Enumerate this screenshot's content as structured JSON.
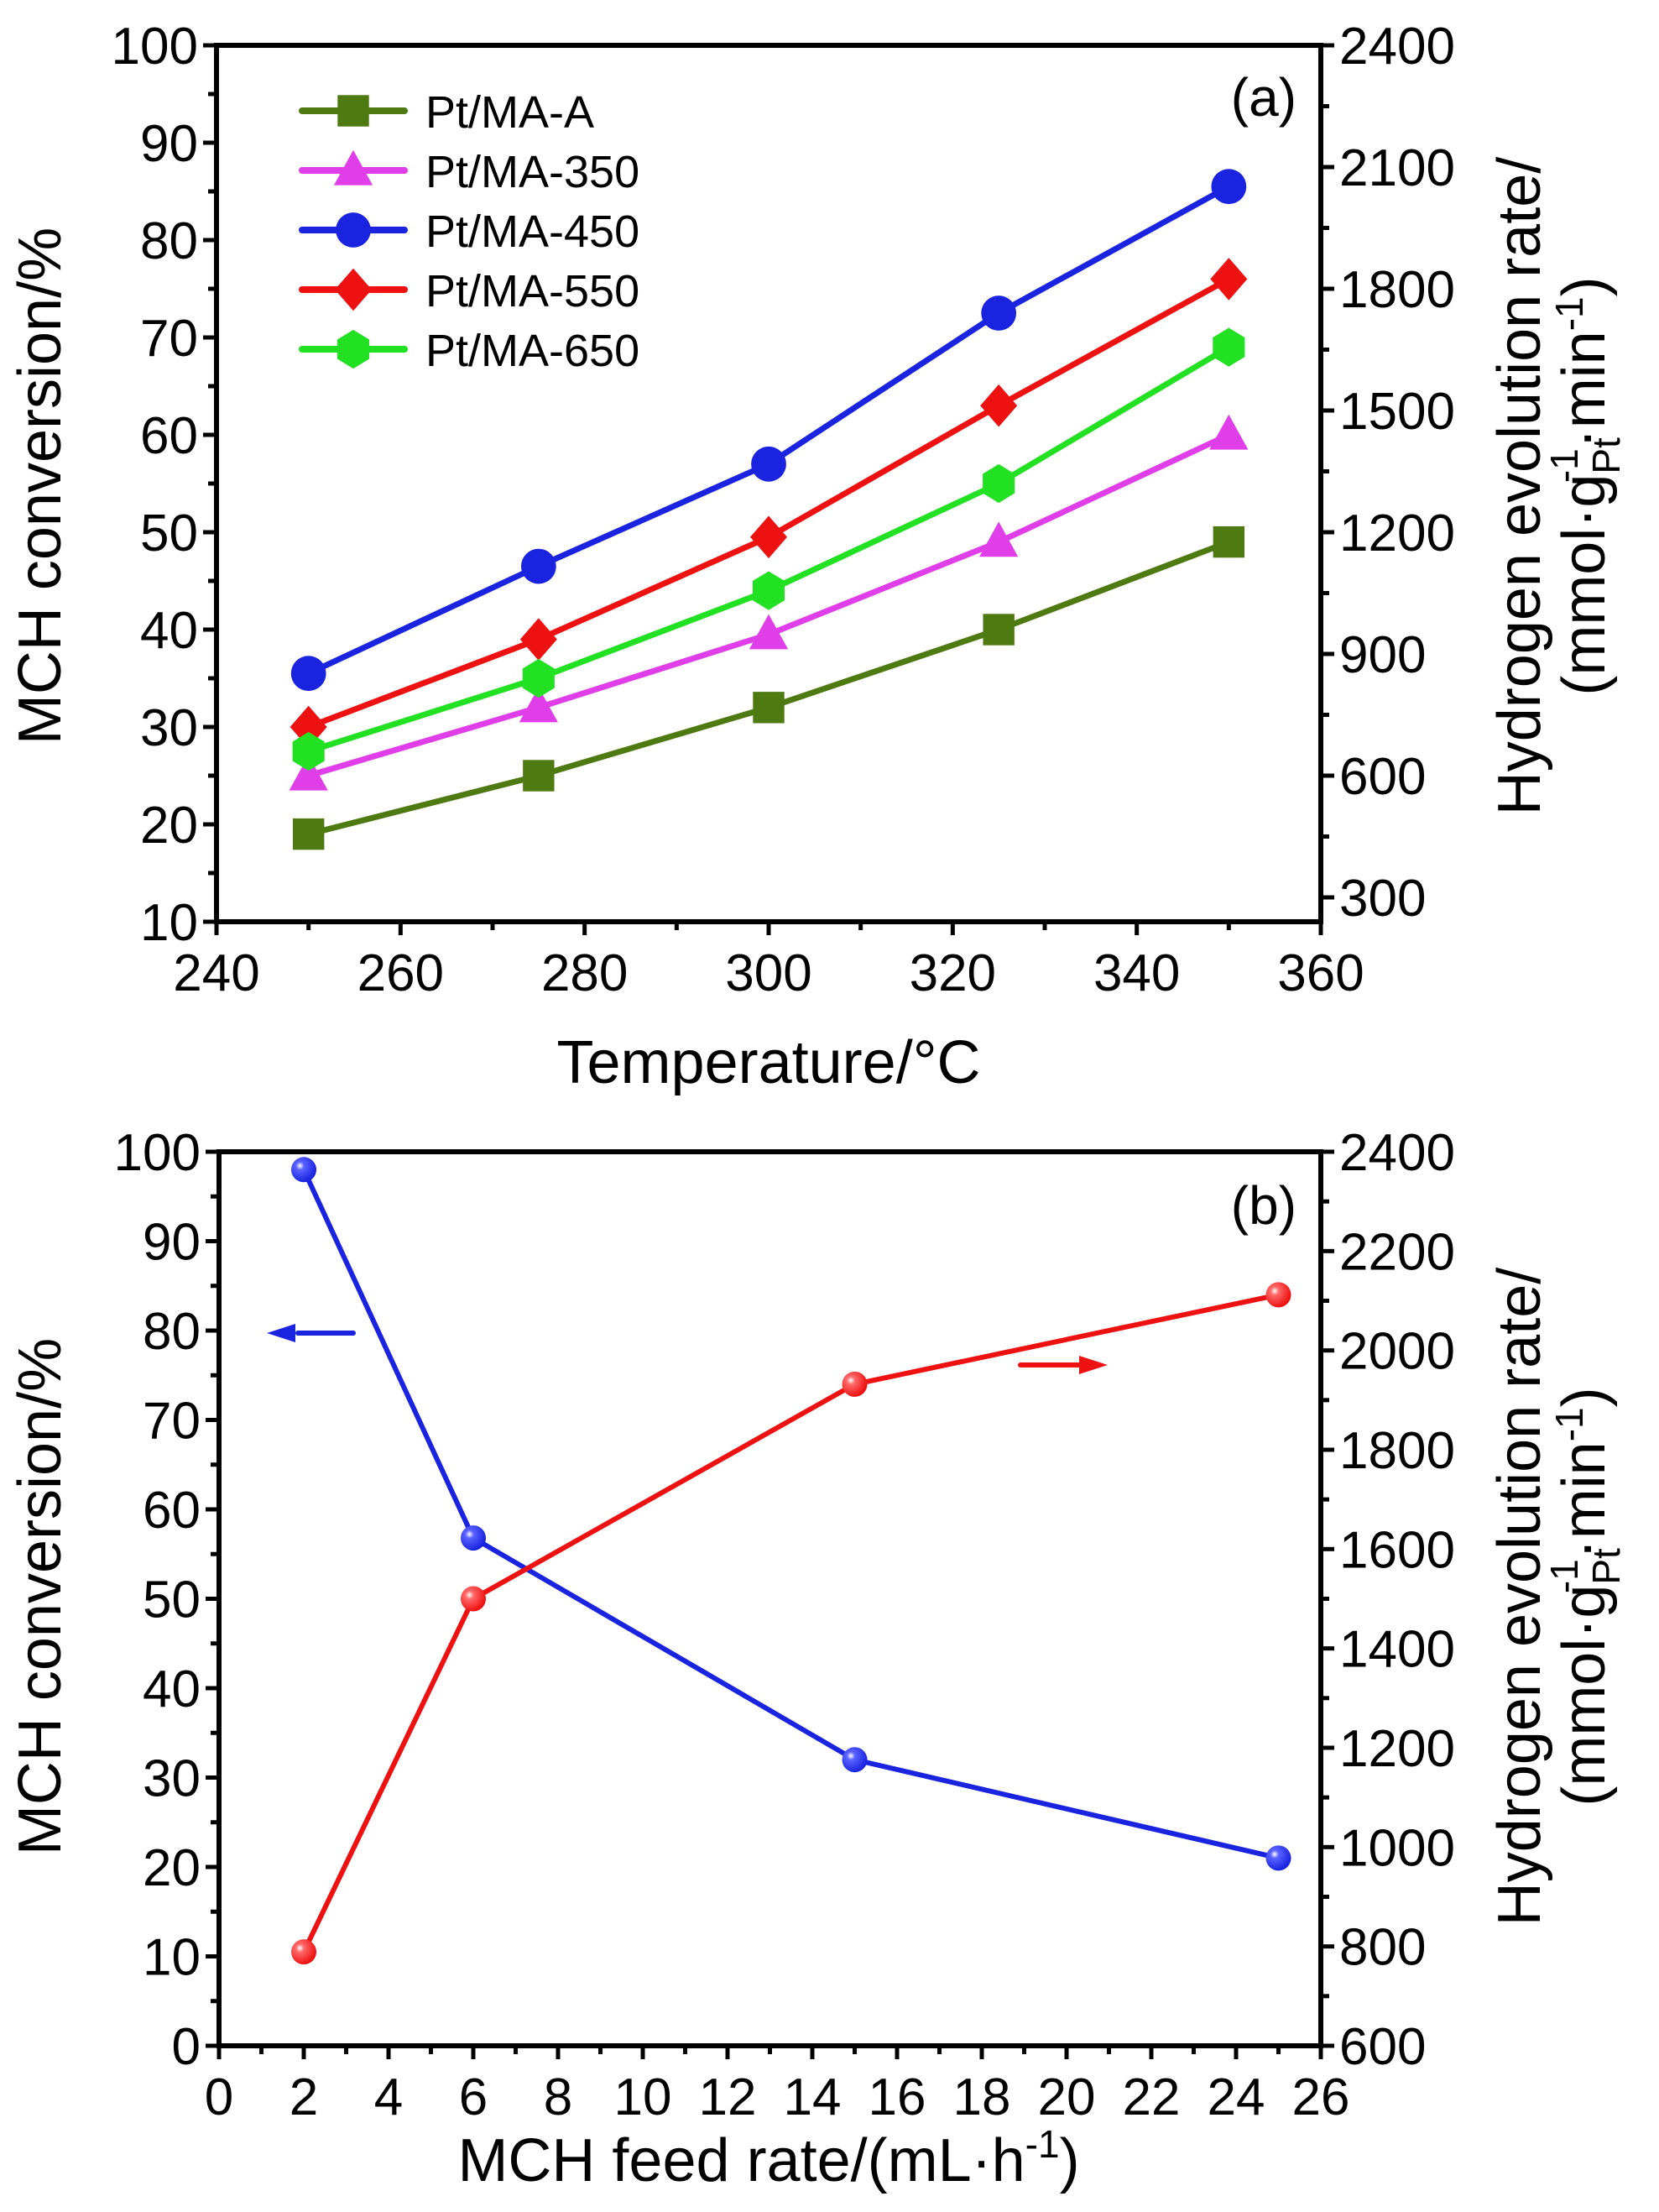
{
  "chart_data": [
    {
      "type": "line",
      "panel_label": "(a)",
      "xlabel": "Temperature/°C",
      "ylabel": "MCH conversion/%",
      "y2label_line1": "Hydrogen evolution rate/",
      "y2label_line2": "(mmol·g_Pt^-1·min^-1)",
      "x": [
        250,
        275,
        300,
        325,
        350
      ],
      "xlim": [
        240,
        360
      ],
      "xticks": [
        240,
        260,
        280,
        300,
        320,
        340,
        360
      ],
      "ylim": [
        10,
        100
      ],
      "yticks": [
        10,
        20,
        30,
        40,
        50,
        60,
        70,
        80,
        90,
        100
      ],
      "y2lim": [
        240,
        2400
      ],
      "y2ticks": [
        300,
        600,
        900,
        1200,
        1500,
        1800,
        2100,
        2400
      ],
      "legend_position": "top-left",
      "grid": false,
      "series": [
        {
          "name": "Pt/MA-A",
          "color": "#4f7a12",
          "marker": "square",
          "values": [
            19,
            25,
            32,
            40,
            49
          ]
        },
        {
          "name": "Pt/MA-350",
          "color": "#e03ee8",
          "marker": "triangle",
          "values": [
            25,
            32,
            39.5,
            49,
            60
          ]
        },
        {
          "name": "Pt/MA-450",
          "color": "#1a24e0",
          "marker": "circle",
          "values": [
            35.5,
            46.5,
            57,
            72.5,
            85.5
          ]
        },
        {
          "name": "Pt/MA-550",
          "color": "#ee1111",
          "marker": "diamond",
          "values": [
            30,
            39,
            49.5,
            63,
            76
          ]
        },
        {
          "name": "Pt/MA-650",
          "color": "#22e022",
          "marker": "hexagon",
          "values": [
            27.5,
            35,
            44,
            55,
            69
          ]
        }
      ]
    },
    {
      "type": "line",
      "panel_label": "(b)",
      "xlabel": "MCH feed rate/(mL·h^-1)",
      "ylabel": "MCH conversion/%",
      "y2label_line1": "Hydrogen evolution rate/",
      "y2label_line2": "(mmol·g_Pt^-1·min^-1)",
      "x": [
        2,
        6,
        15,
        25
      ],
      "xlim": [
        0,
        26
      ],
      "xticks": [
        0,
        2,
        4,
        6,
        8,
        10,
        12,
        14,
        16,
        18,
        20,
        22,
        24,
        26
      ],
      "ylim": [
        0,
        100
      ],
      "yticks": [
        0,
        10,
        20,
        30,
        40,
        50,
        60,
        70,
        80,
        90,
        100
      ],
      "y2lim": [
        600,
        2400
      ],
      "y2ticks": [
        600,
        800,
        1000,
        1200,
        1400,
        1600,
        1800,
        2000,
        2200,
        2400
      ],
      "grid": false,
      "annotations": [
        {
          "type": "arrow",
          "direction": "left",
          "color": "#1a24e0",
          "meaning": "conversion uses left axis"
        },
        {
          "type": "arrow",
          "direction": "right",
          "color": "#ee1111",
          "meaning": "hydrogen rate uses right axis"
        }
      ],
      "series": [
        {
          "name": "MCH conversion",
          "axis": "left",
          "color": "#1a24e0",
          "marker": "ball",
          "values": [
            98,
            56.8,
            32,
            21
          ]
        },
        {
          "name": "Hydrogen evolution rate",
          "axis": "right",
          "color": "#ee1111",
          "marker": "ball",
          "values": [
            789,
            1500,
            1932,
            2112
          ]
        }
      ]
    }
  ]
}
